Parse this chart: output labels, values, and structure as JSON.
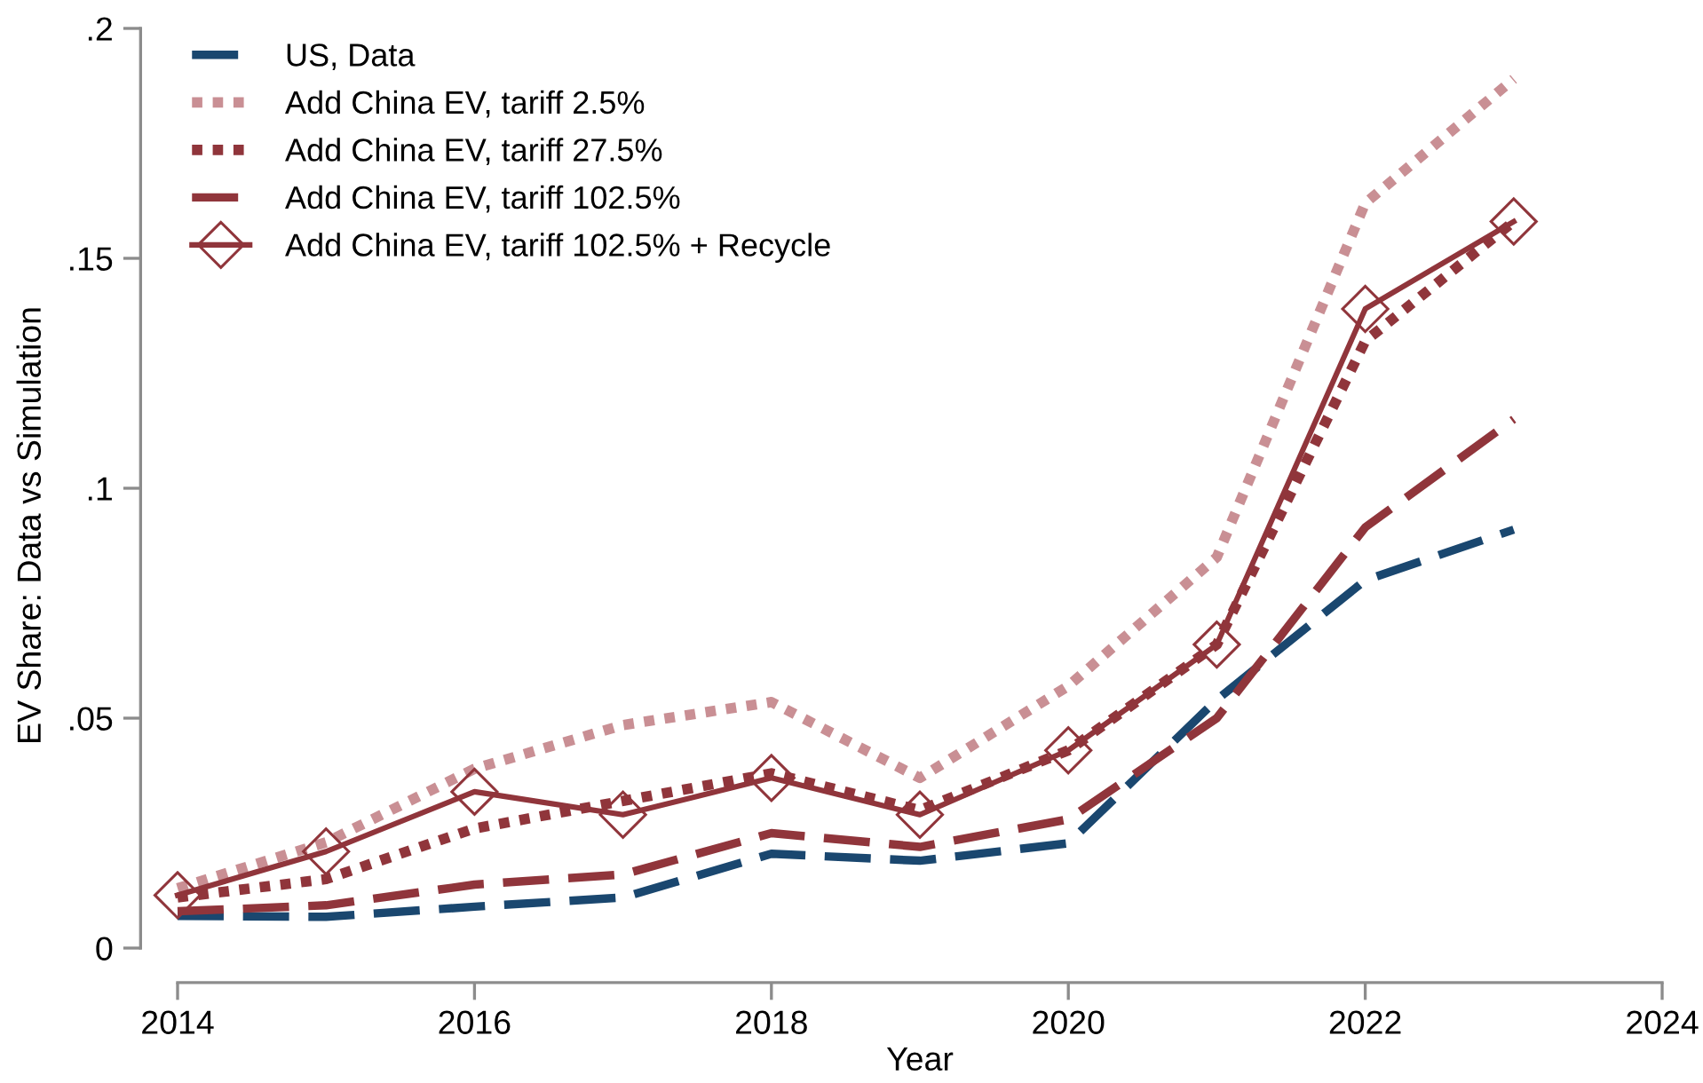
{
  "chart_data": {
    "type": "line",
    "xlabel": "Year",
    "ylabel": "EV Share: Data vs Simulation",
    "x": [
      2014,
      2015,
      2016,
      2017,
      2018,
      2019,
      2020,
      2021,
      2022,
      2023
    ],
    "xlim": [
      2014,
      2024
    ],
    "xticks": [
      2014,
      2016,
      2018,
      2020,
      2022,
      2024
    ],
    "ylim": [
      0,
      0.2
    ],
    "yticks": [
      0,
      {
        "value": 0.05,
        "label": ".05"
      },
      {
        "value": 0.1,
        "label": ".1"
      },
      {
        "value": 0.15,
        "label": ".15"
      },
      {
        "value": 0.2,
        "label": ".2"
      }
    ],
    "legend": "top left",
    "series": [
      {
        "name": "US, Data",
        "color": "#1a476f",
        "line_style": "dashed",
        "values": [
          0.007,
          0.0068,
          0.009,
          0.011,
          0.0205,
          0.019,
          0.0228,
          0.054,
          0.08,
          0.091
        ]
      },
      {
        "name": "Add China EV, tariff 2.5%",
        "color": "#c98f94",
        "line_style": "dotted",
        "values": [
          0.013,
          0.023,
          0.039,
          0.0485,
          0.0535,
          0.037,
          0.057,
          0.085,
          0.162,
          0.189
        ]
      },
      {
        "name": "Add China EV, tariff 27.5%",
        "color": "#90353b",
        "line_style": "dotted",
        "values": [
          0.011,
          0.015,
          0.026,
          0.032,
          0.038,
          0.03,
          0.043,
          0.066,
          0.132,
          0.158
        ]
      },
      {
        "name": "Add China EV, tariff 102.5%",
        "color": "#90353b",
        "line_style": "dashed",
        "values": [
          0.008,
          0.0093,
          0.0138,
          0.016,
          0.025,
          0.022,
          0.028,
          0.05,
          0.0915,
          0.115
        ]
      },
      {
        "name": "Add China EV, tariff 102.5% + Recycle",
        "color": "#90353b",
        "line_style": "solid",
        "marker": "diamond",
        "values": [
          0.0115,
          0.021,
          0.034,
          0.029,
          0.037,
          0.029,
          0.043,
          0.066,
          0.139,
          0.158
        ]
      }
    ]
  }
}
